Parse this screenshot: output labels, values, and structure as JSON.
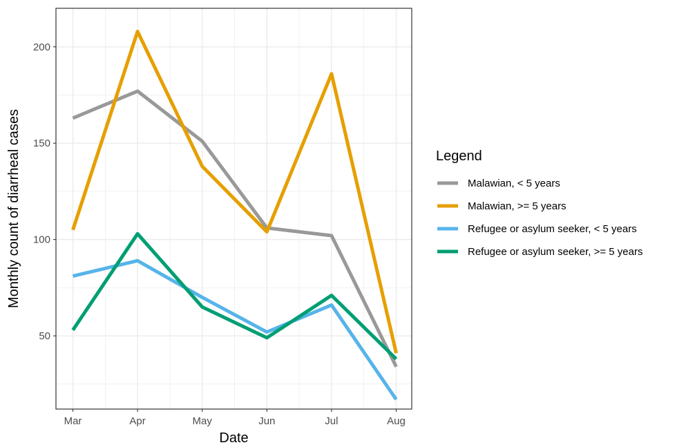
{
  "chart_data": {
    "type": "line",
    "xlabel": "Date",
    "ylabel": "Monthly count of diarrheal cases",
    "categories": [
      "Mar",
      "Apr",
      "May",
      "Jun",
      "Jul",
      "Aug"
    ],
    "ylim": [
      12,
      220
    ],
    "yticks": [
      50,
      100,
      150,
      200
    ],
    "grid": true,
    "legend": {
      "title": "Legend",
      "position": "right"
    },
    "series": [
      {
        "name": "Malawian, < 5 years",
        "color": "#999999",
        "values": [
          163,
          177,
          151,
          106,
          102,
          34
        ]
      },
      {
        "name": "Malawian, >= 5 years",
        "color": "#E69F00",
        "values": [
          105,
          208,
          138,
          104,
          186,
          41
        ]
      },
      {
        "name": "Refugee or asylum seeker, < 5 years",
        "color": "#56B4E9",
        "values": [
          81,
          89,
          70,
          52,
          66,
          17
        ]
      },
      {
        "name": "Refugee or asylum seeker, >= 5 years",
        "color": "#009E73",
        "values": [
          53,
          103,
          65,
          49,
          71,
          38
        ]
      }
    ]
  }
}
